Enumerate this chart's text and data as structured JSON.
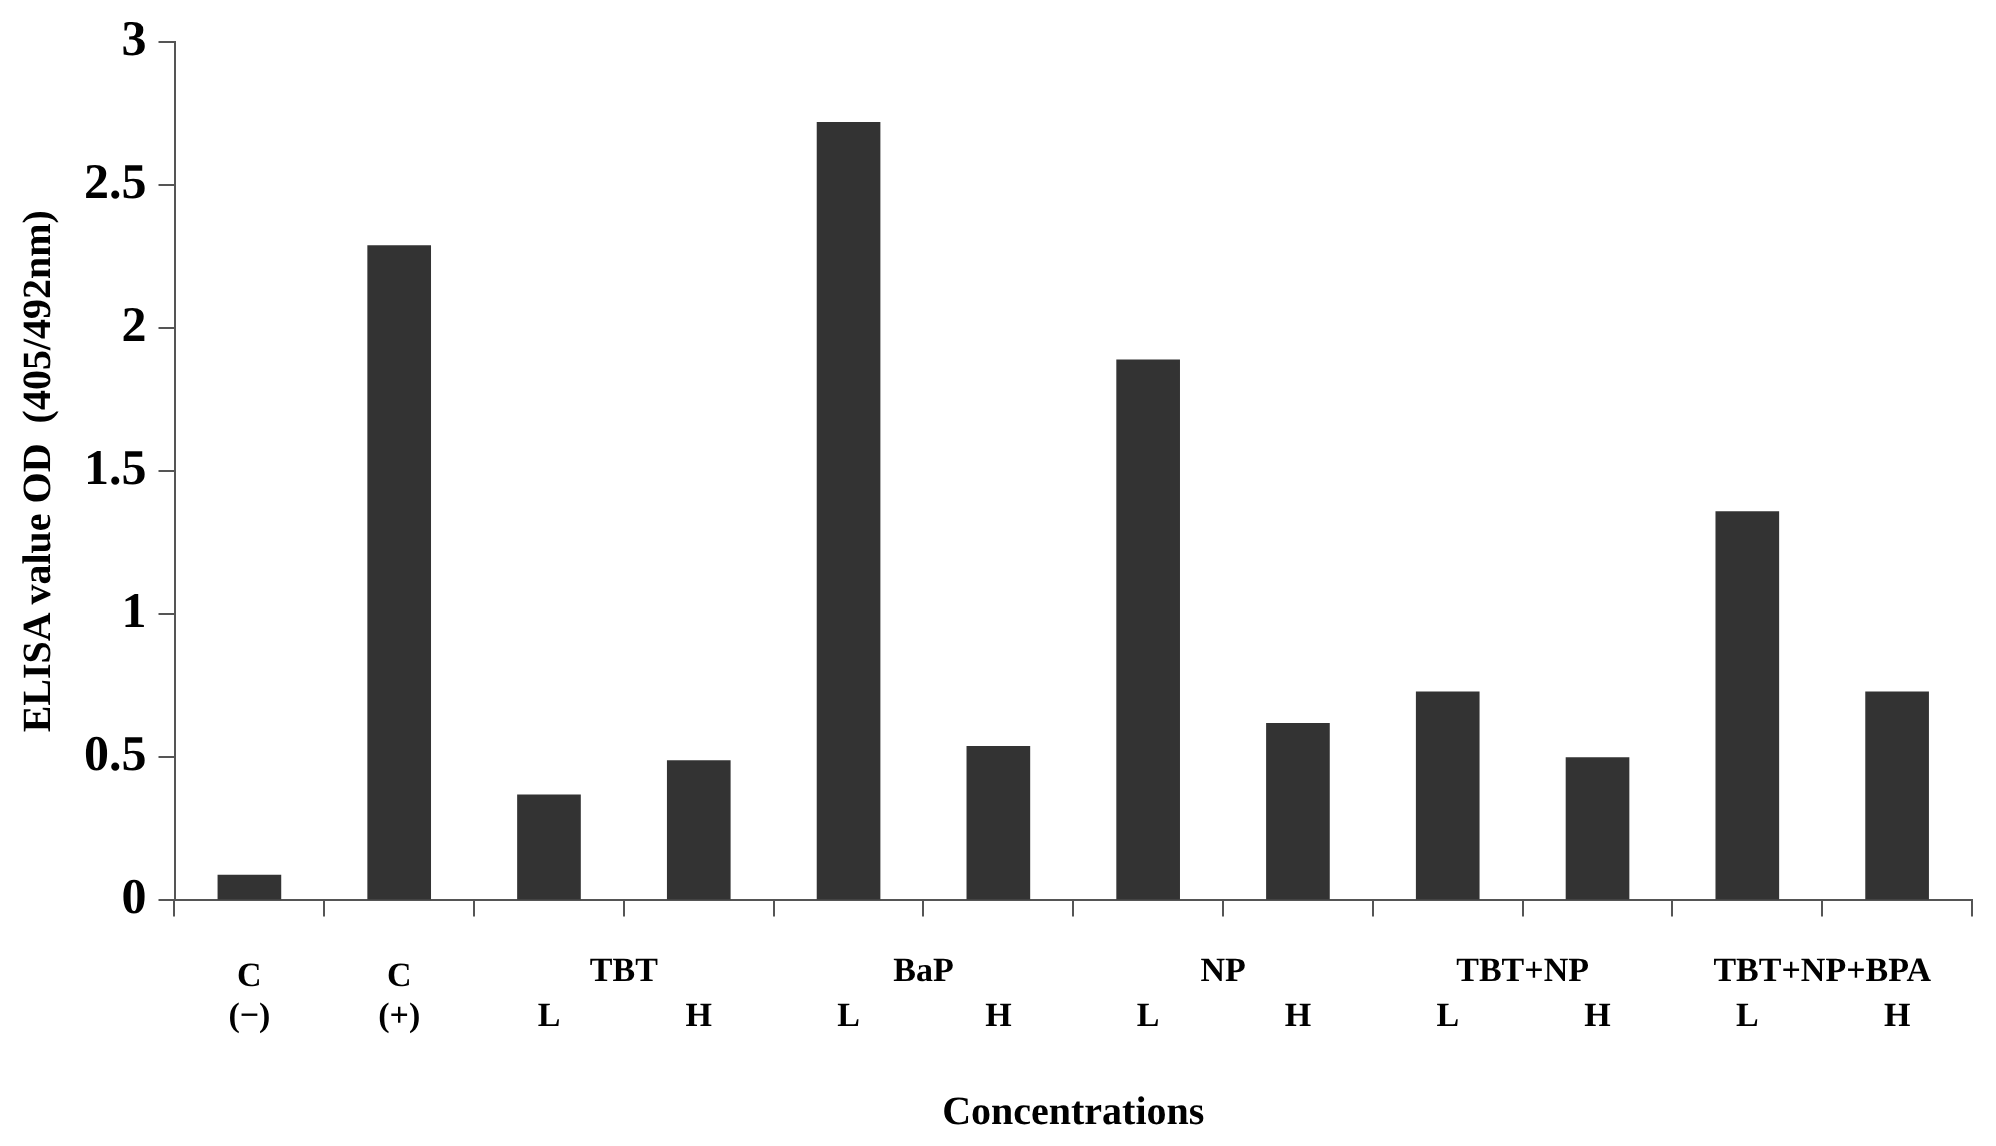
{
  "chart_data": {
    "type": "bar",
    "xlabel": "Concentrations",
    "ylabel": "ELISA value OD  (405/492nm)",
    "categories": [
      "C\n(−)",
      "C\n(+)",
      "L",
      "H",
      "L",
      "H",
      "L",
      "H",
      "L",
      "H",
      "L",
      "H"
    ],
    "values": [
      0.09,
      2.29,
      0.37,
      0.49,
      2.72,
      0.54,
      1.89,
      0.62,
      0.73,
      0.5,
      1.36,
      0.73
    ],
    "color": "#333333",
    "annotations": [
      "TBT",
      "BaP",
      "NP",
      "TBT+NP",
      "TBT+NP+BPA"
    ],
    "ylim": [
      0,
      3
    ],
    "yticks": [
      0,
      0.5,
      1,
      1.5,
      2,
      2.5,
      3
    ],
    "grid": false,
    "legend": false
  }
}
